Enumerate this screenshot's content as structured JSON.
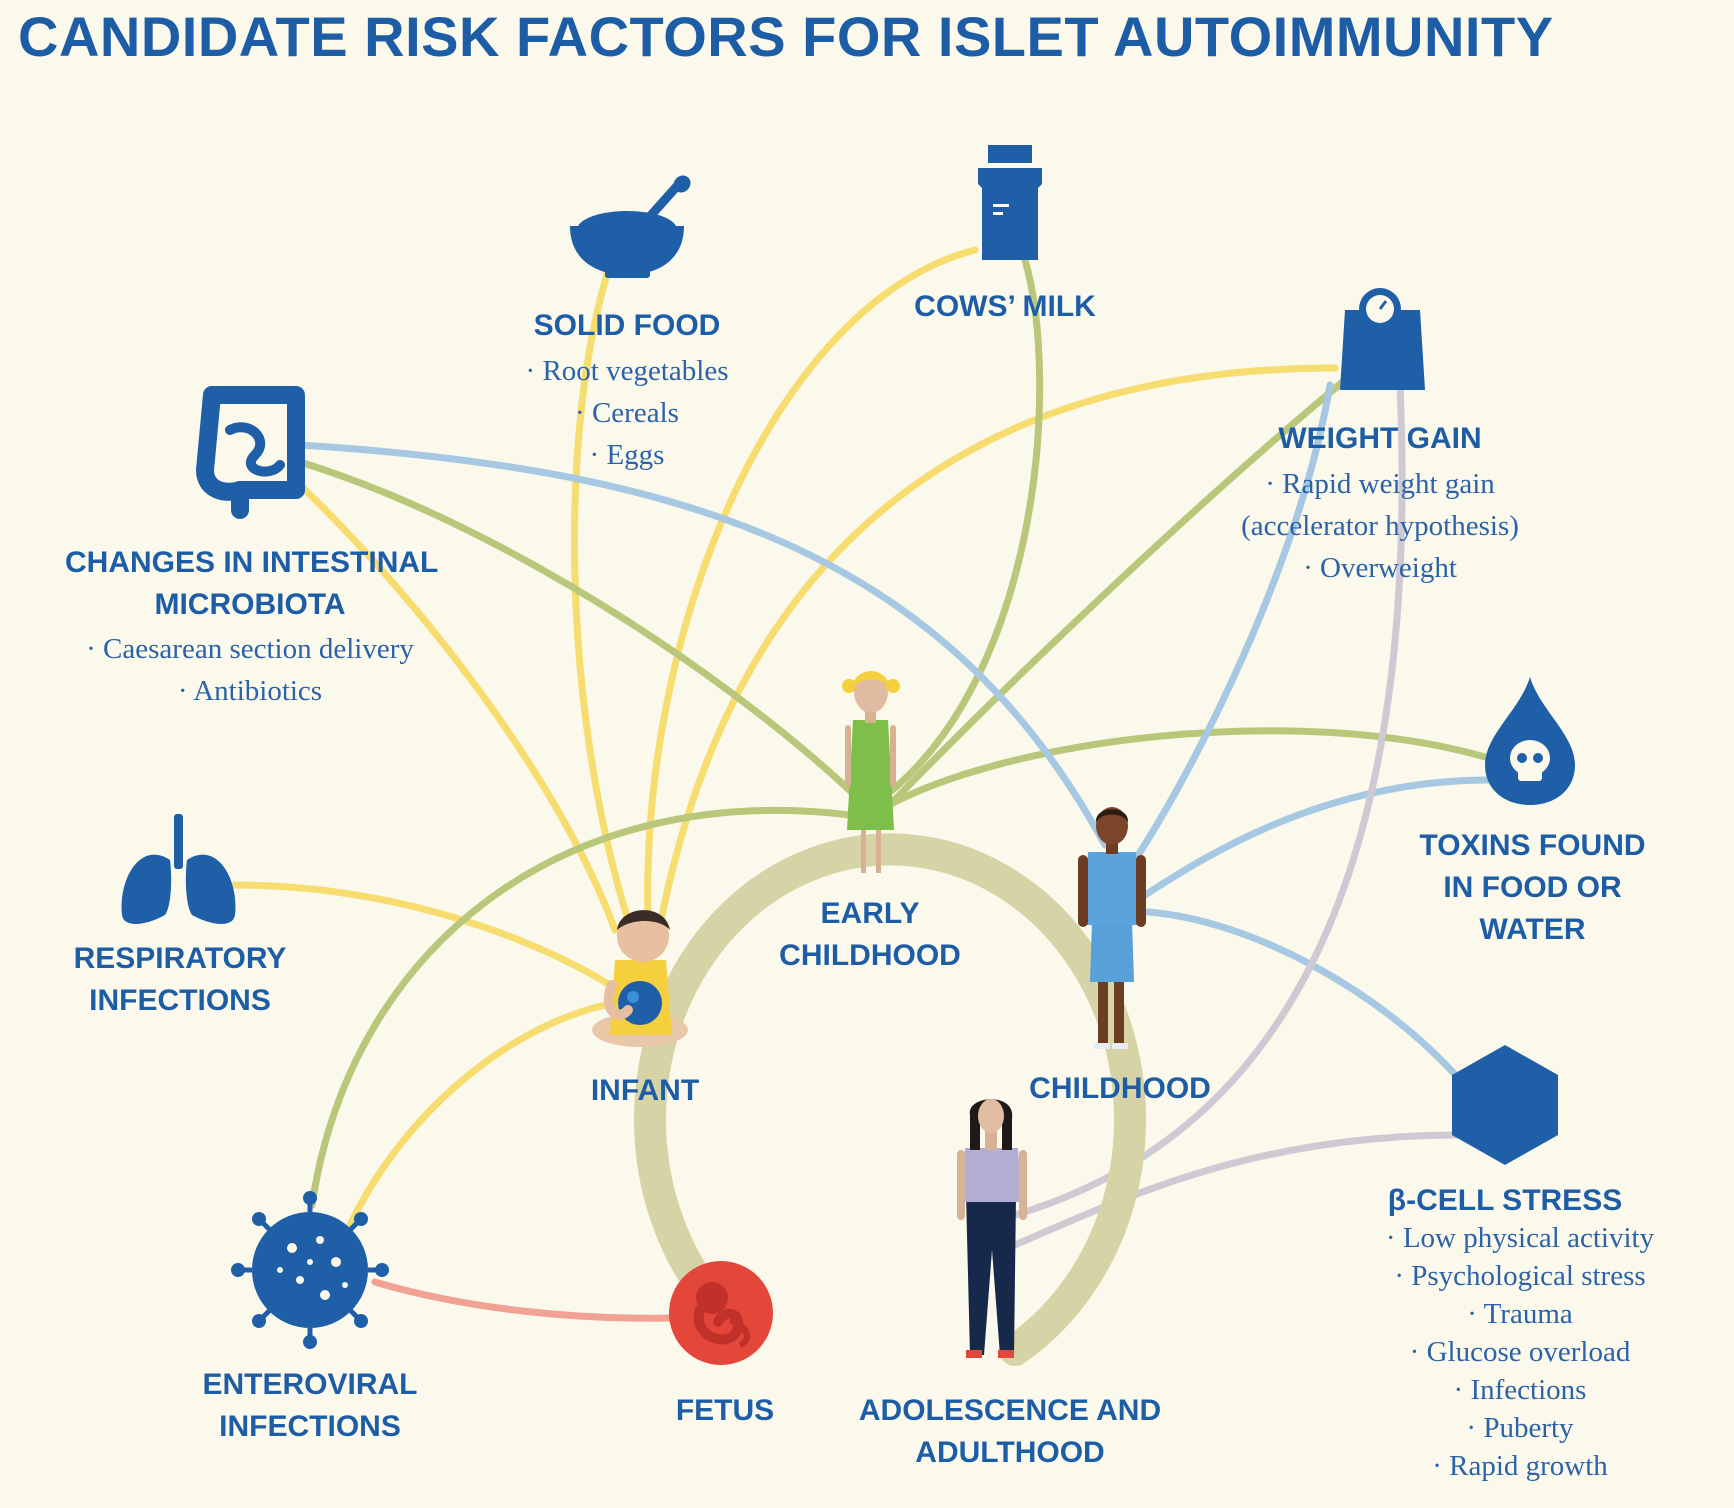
{
  "title": "CANDIDATE RISK FACTORS FOR ISLET AUTOIMMUNITY",
  "colors": {
    "background": "#fbf9ec",
    "text_blue": "#1d5da6",
    "icon_blue": "#1f5fa8",
    "line_yellow": "#f7dc6f",
    "line_green": "#b9c77a",
    "line_blue": "#a7c8e2",
    "line_grey": "#cfc9d4",
    "line_red": "#f1a294",
    "life_ring": "#d6d3a6",
    "fetus_red": "#e3473a"
  },
  "life_stages": [
    {
      "id": "fetus",
      "label": [
        "FETUS"
      ]
    },
    {
      "id": "infant",
      "label": [
        "INFANT"
      ]
    },
    {
      "id": "early_childhood",
      "label": [
        "EARLY",
        "CHILDHOOD"
      ]
    },
    {
      "id": "childhood",
      "label": [
        "CHILDHOOD"
      ]
    },
    {
      "id": "adolescence",
      "label": [
        "ADOLESCENCE AND",
        "ADULTHOOD"
      ]
    }
  ],
  "risk_factors": [
    {
      "id": "solid_food",
      "icon": "bowl-icon",
      "label": [
        "SOLID FOOD"
      ],
      "items": [
        "Root vegetables",
        "Cereals",
        "Eggs"
      ]
    },
    {
      "id": "cows_milk",
      "icon": "milk-carton-icon",
      "label": [
        "COWS’ MILK"
      ],
      "items": []
    },
    {
      "id": "weight_gain",
      "icon": "scale-icon",
      "label": [
        "WEIGHT GAIN"
      ],
      "items": [
        "Rapid weight gain",
        "(accelerator hypothesis)",
        "Overweight"
      ]
    },
    {
      "id": "microbiota",
      "icon": "intestine-icon",
      "label": [
        "CHANGES IN INTESTINAL",
        "MICROBIOTA"
      ],
      "items": [
        "Caesarean section delivery",
        "Antibiotics"
      ]
    },
    {
      "id": "respiratory",
      "icon": "lungs-icon",
      "label": [
        "RESPIRATORY",
        "INFECTIONS"
      ],
      "items": []
    },
    {
      "id": "toxins",
      "icon": "toxin-drop-icon",
      "label": [
        "TOXINS FOUND",
        "IN FOOD OR",
        "WATER"
      ],
      "items": []
    },
    {
      "id": "beta_cell",
      "icon": "hexagon-icon",
      "label": [
        "β-CELL STRESS"
      ],
      "items": [
        "Low physical activity",
        "Psychological stress",
        "Trauma",
        "Glucose overload",
        "Infections",
        "Puberty",
        "Rapid growth"
      ]
    },
    {
      "id": "enteroviral",
      "icon": "virus-icon",
      "label": [
        "ENTEROVIRAL",
        "INFECTIONS"
      ],
      "items": []
    }
  ]
}
